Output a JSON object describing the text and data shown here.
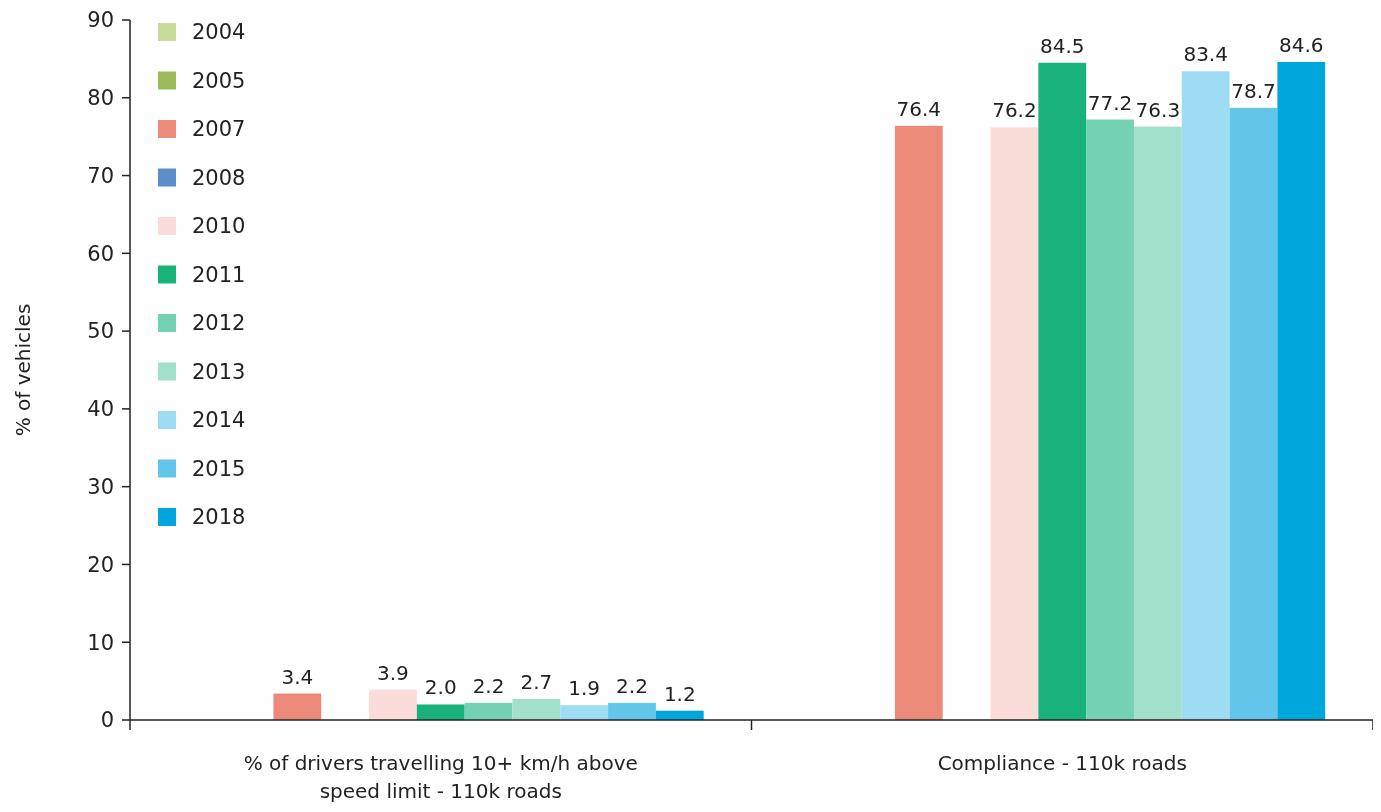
{
  "chart_data": {
    "type": "bar",
    "ylabel": "% of vehicles",
    "categories": [
      "% of drivers travelling 10+ km/h above speed limit - 110k roads",
      "Compliance - 110k roads"
    ],
    "ylim": [
      0,
      90
    ],
    "yticks": [
      0,
      10,
      20,
      30,
      40,
      50,
      60,
      70,
      80,
      90
    ],
    "legend": "top left",
    "grid": false,
    "series": [
      {
        "name": "2004",
        "color": "#c5dc9a",
        "values": [
          null,
          null
        ]
      },
      {
        "name": "2005",
        "color": "#9bbb59",
        "values": [
          null,
          null
        ]
      },
      {
        "name": "2007",
        "color": "#eb8a78",
        "values": [
          3.4,
          76.4
        ],
        "value_labels": [
          "3.4",
          "76.4"
        ]
      },
      {
        "name": "2008",
        "color": "#5b8fcc",
        "values": [
          null,
          null
        ]
      },
      {
        "name": "2010",
        "color": "#fadcd8",
        "values": [
          3.9,
          76.2
        ],
        "value_labels": [
          "3.9",
          "76.2"
        ]
      },
      {
        "name": "2011",
        "color": "#19b27b",
        "values": [
          2.0,
          84.5
        ],
        "value_labels": [
          "2.0",
          "84.5"
        ]
      },
      {
        "name": "2012",
        "color": "#74d1b3",
        "values": [
          2.2,
          77.2
        ],
        "value_labels": [
          "2.2",
          "77.2"
        ]
      },
      {
        "name": "2013",
        "color": "#a3e0cc",
        "values": [
          2.7,
          76.3
        ],
        "value_labels": [
          "2.7",
          "76.3"
        ]
      },
      {
        "name": "2014",
        "color": "#9ddcf2",
        "values": [
          1.9,
          83.4
        ],
        "value_labels": [
          "1.9",
          "83.4"
        ]
      },
      {
        "name": "2015",
        "color": "#62c6ea",
        "values": [
          2.2,
          78.7
        ],
        "value_labels": [
          "2.2",
          "78.7"
        ]
      },
      {
        "name": "2018",
        "color": "#00a6dc",
        "values": [
          1.2,
          84.6
        ],
        "value_labels": [
          "1.2",
          "84.6"
        ]
      }
    ]
  }
}
